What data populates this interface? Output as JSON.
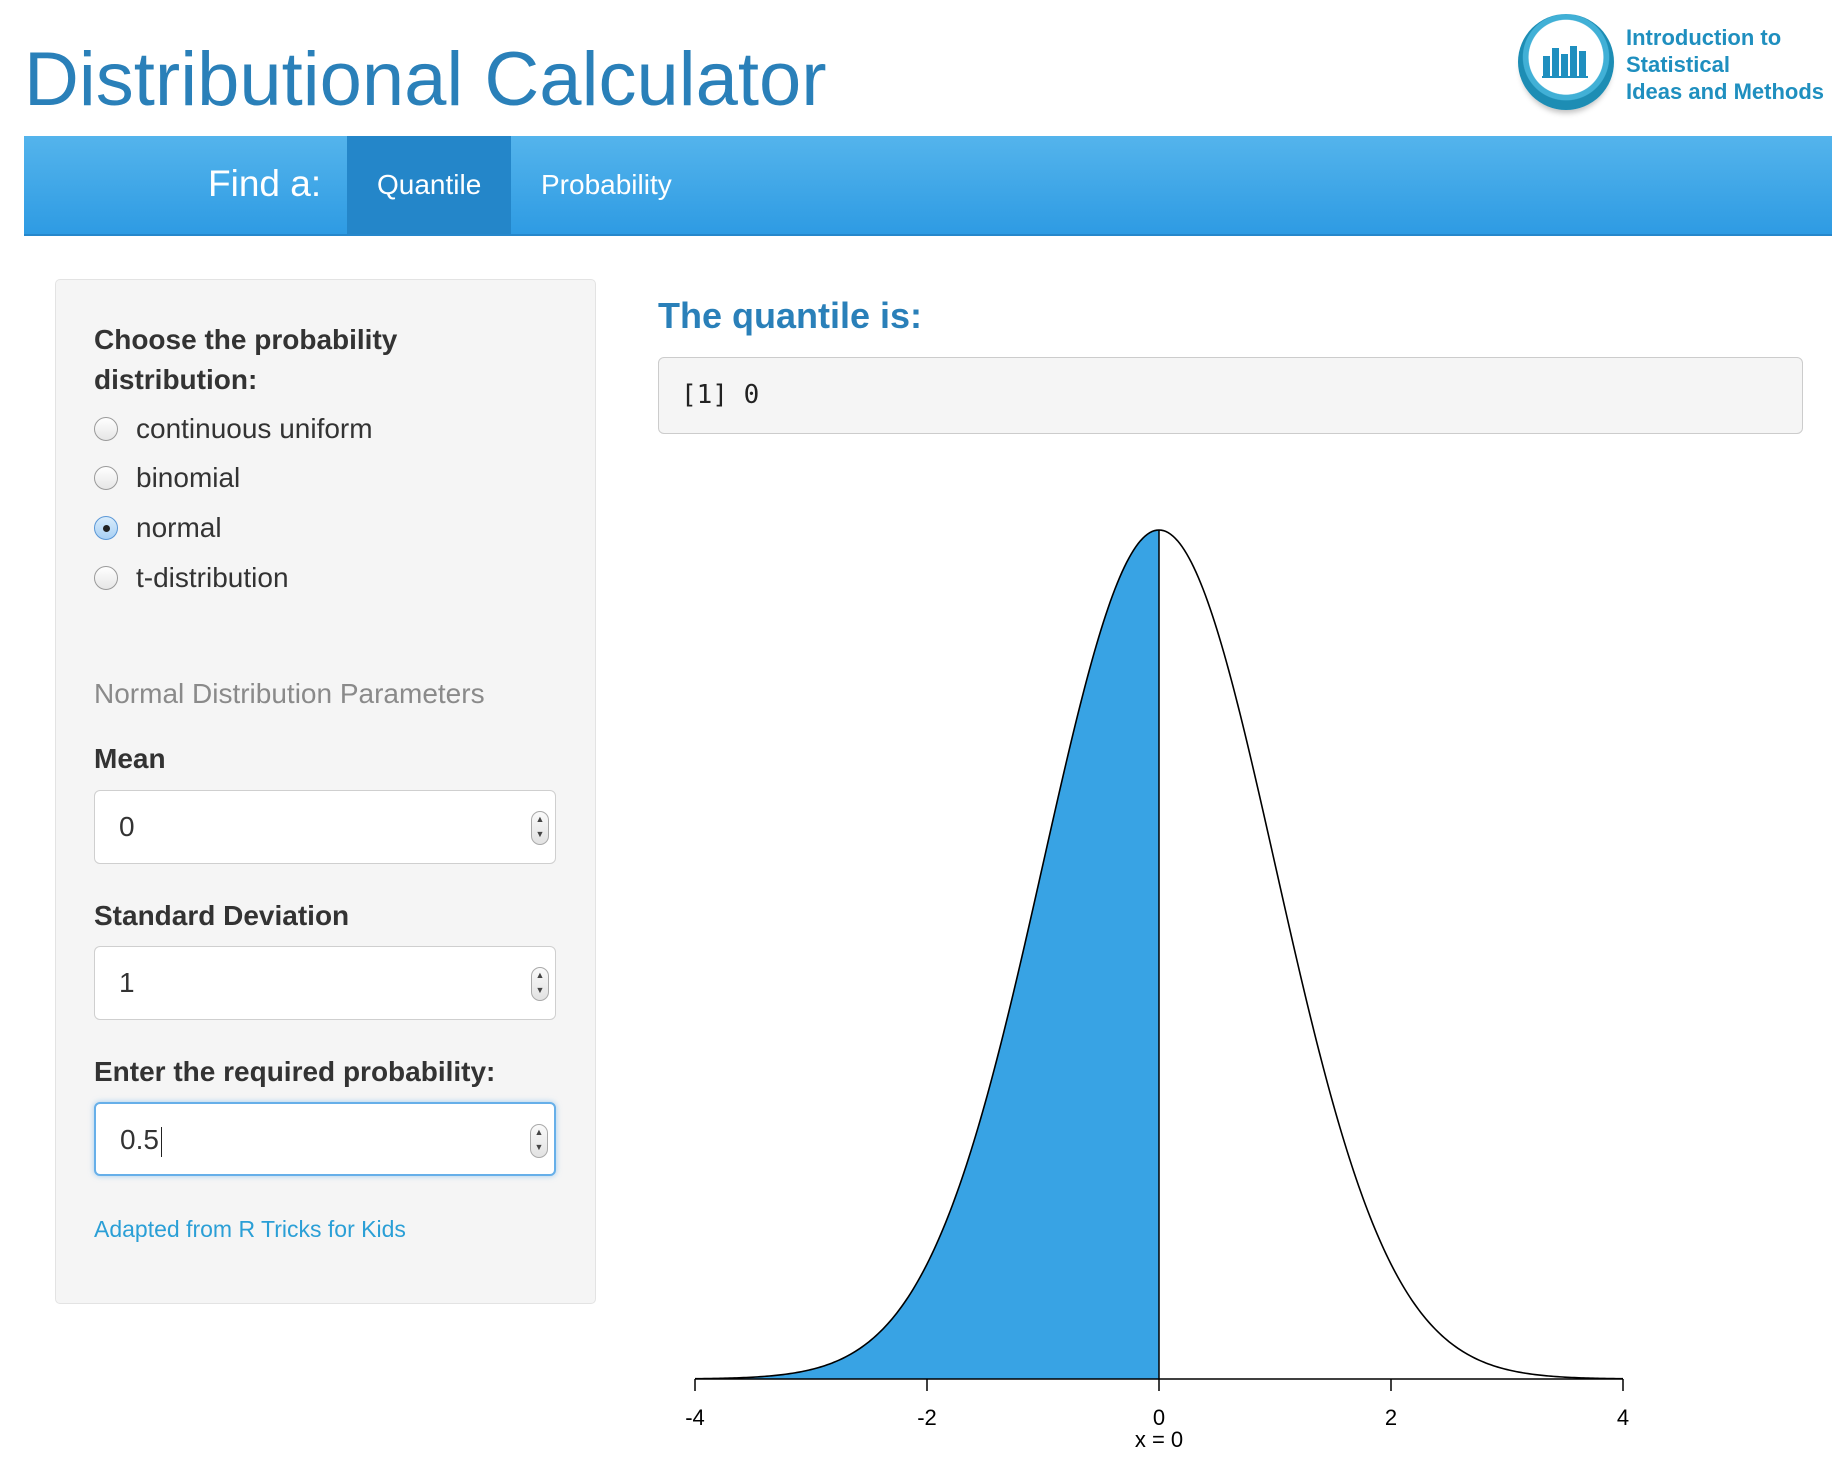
{
  "header": {
    "title": "Distributional Calculator",
    "logo_lines": [
      "Introduction to",
      "Statistical",
      "Ideas and Methods"
    ]
  },
  "navbar": {
    "brand": "Find a:",
    "tabs": [
      {
        "label": "Quantile",
        "active": true
      },
      {
        "label": "Probability",
        "active": false
      }
    ],
    "colors": {
      "bar": "#3aa6e6",
      "active_tab": "#2486c9"
    }
  },
  "sidebar": {
    "distribution_label": "Choose the probability distribution:",
    "distributions": [
      {
        "label": "continuous uniform",
        "checked": false
      },
      {
        "label": "binomial",
        "checked": false
      },
      {
        "label": "normal",
        "checked": true
      },
      {
        "label": "t-distribution",
        "checked": false
      }
    ],
    "params_heading": "Normal Distribution Parameters",
    "mean": {
      "label": "Mean",
      "value": "0"
    },
    "sd": {
      "label": "Standard Deviation",
      "value": "1"
    },
    "probability": {
      "label": "Enter the required probability:",
      "value": "0.5"
    },
    "credit": "Adapted from R Tricks for Kids"
  },
  "result": {
    "heading": "The quantile is:",
    "output": "[1] 0"
  },
  "chart_data": {
    "type": "area",
    "distribution": "normal",
    "mean": 0,
    "sd": 1,
    "shaded_upto": 0,
    "shade_color": "#38a3e4",
    "xlim": [
      -4,
      4
    ],
    "xticks": [
      "-4",
      "-2",
      "0",
      "2",
      "4"
    ],
    "x_annotation": "x =  0",
    "grid": false
  }
}
